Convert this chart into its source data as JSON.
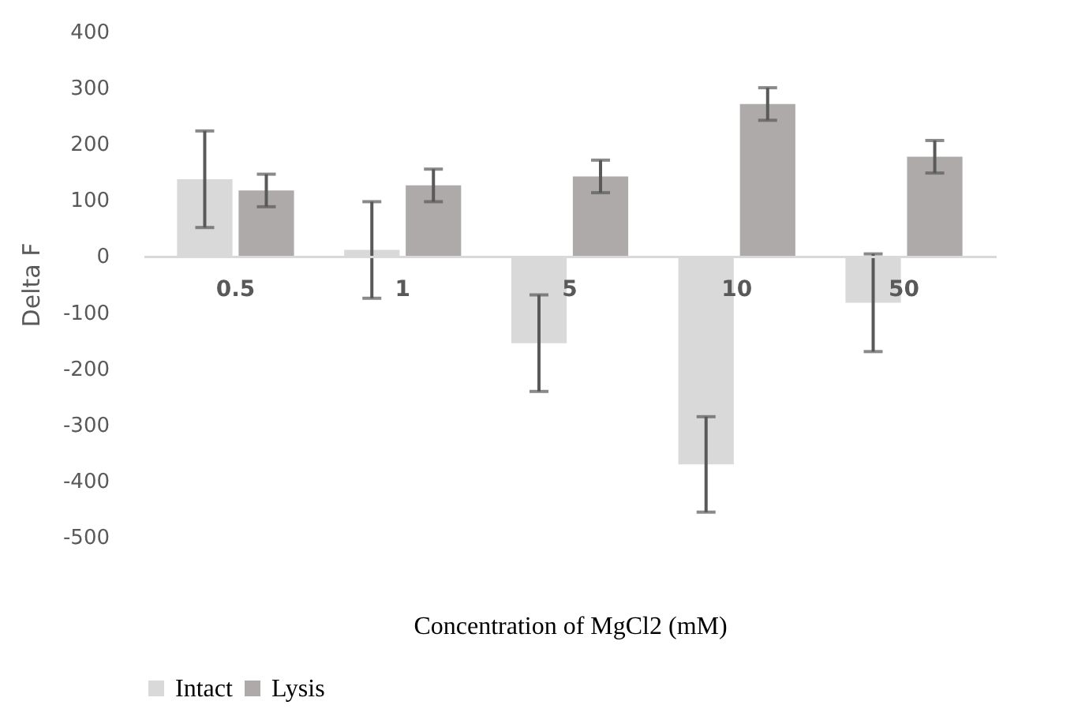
{
  "chart_data": {
    "type": "bar",
    "xlabel": "Concentration of MgCl2 (mM)",
    "ylabel": "Delta F",
    "categories": [
      "0.5",
      "1",
      "5",
      "10",
      "50"
    ],
    "series": [
      {
        "name": "Intact",
        "color": "#d9d9d9",
        "values": [
          137,
          11,
          -155,
          -371,
          -83
        ],
        "errors": [
          86,
          86,
          86,
          85,
          87
        ]
      },
      {
        "name": "Lysis",
        "color": "#aeaaaa",
        "values": [
          117,
          126,
          142,
          271,
          177
        ],
        "errors": [
          29,
          29,
          29,
          29,
          29
        ]
      }
    ],
    "ylim": [
      -500,
      400
    ],
    "yticks": [
      400,
      300,
      200,
      100,
      0,
      -100,
      -200,
      -300,
      -400,
      -500
    ],
    "grid": false,
    "legend": "bottom"
  }
}
